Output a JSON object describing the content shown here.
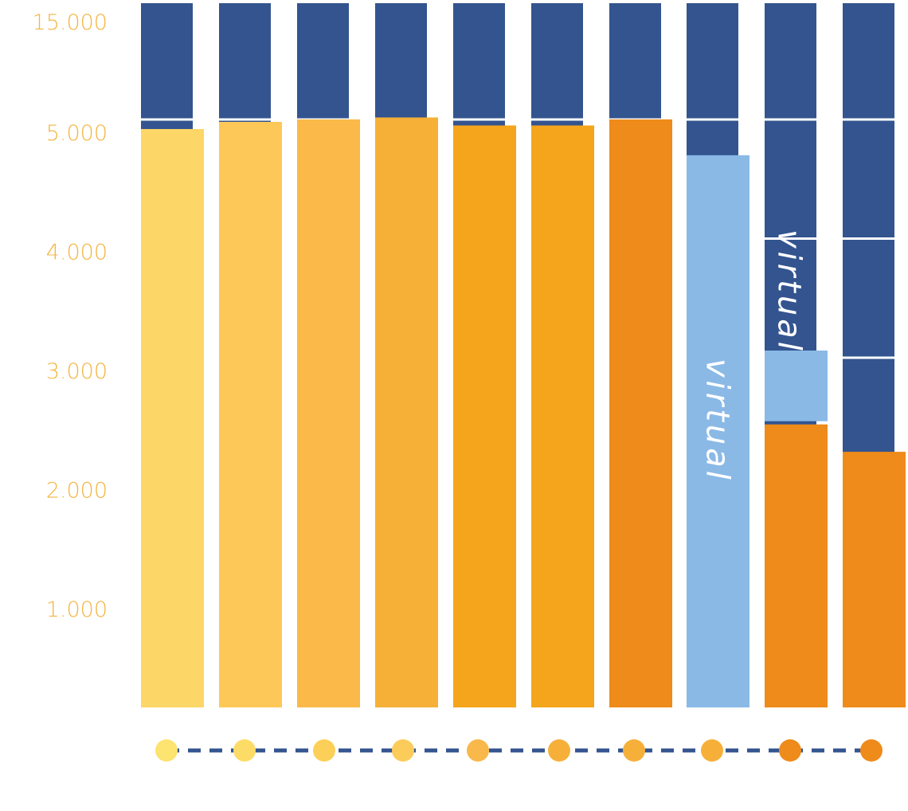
{
  "chart_data": {
    "type": "bar",
    "title": "",
    "xlabel": "",
    "ylabel": "",
    "y_ticks": [
      "1.000",
      "2.000",
      "3.000",
      "4.000",
      "5.000",
      "15.000"
    ],
    "y_tick_values": [
      1000,
      2000,
      3000,
      4000,
      5000,
      15000
    ],
    "scale_note_hidden": true,
    "bars": [
      {
        "value": 4920,
        "color": "#fcd666",
        "dot_color": "#fde36f",
        "label": ""
      },
      {
        "value": 4980,
        "color": "#fdc858",
        "dot_color": "#fcdc66",
        "label": ""
      },
      {
        "value": 5010,
        "color": "#fab948",
        "dot_color": "#fcd058",
        "label": ""
      },
      {
        "value": 5170,
        "color": "#f6b038",
        "dot_color": "#fccc5a",
        "label": ""
      },
      {
        "value": 4950,
        "color": "#f4a51c",
        "dot_color": "#f9b84a",
        "label": ""
      },
      {
        "value": 4950,
        "color": "#f4a51c",
        "dot_color": "#f6b03a",
        "label": ""
      },
      {
        "value": 5010,
        "color": "#ee8b1a",
        "dot_color": "#f6b03a",
        "label": ""
      },
      {
        "value": 4700,
        "color": "#8ab9e6",
        "dot_color": "#f6b03a",
        "label": "virtual"
      },
      {
        "value": 2440,
        "color": "#ee8b1a",
        "dot_color": "#ee8b1a",
        "label": "",
        "stack_value": 3060,
        "stack_color": "#8ab9e6",
        "stack_label": "virtual"
      },
      {
        "value": 2210,
        "color": "#ee8b1a",
        "dot_color": "#ee8b1a",
        "label": ""
      }
    ],
    "background_column_color": "#33548f",
    "dots_line_color": "#33548f"
  }
}
